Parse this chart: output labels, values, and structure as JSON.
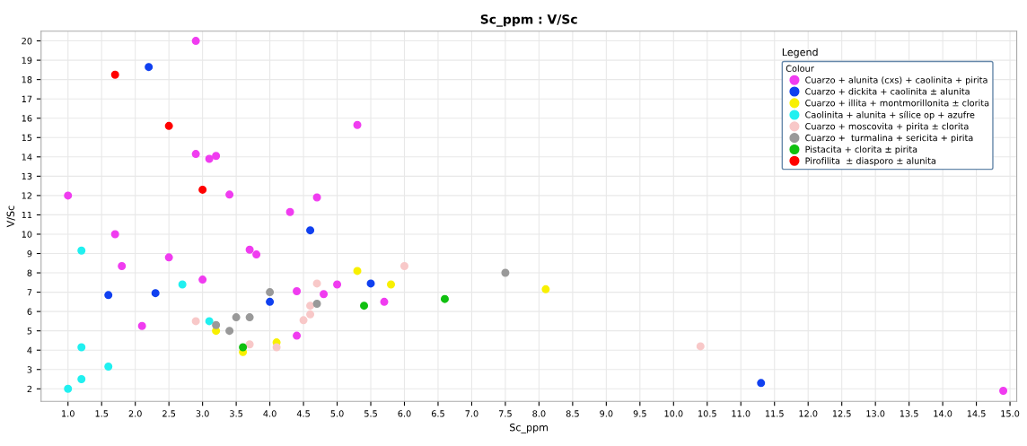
{
  "chart_data": {
    "type": "scatter",
    "title": "Sc_ppm : V/Sc",
    "xlabel": "Sc_ppm",
    "ylabel": "V/Sc",
    "legend_title": "Colour",
    "annotations": [
      "Legend"
    ],
    "xlim": [
      0.6,
      15.1
    ],
    "ylim": [
      1.35,
      20.5
    ],
    "xticks": [
      {
        "value": 1.0,
        "label": "1.0"
      },
      {
        "value": 1.5,
        "label": "1.5"
      },
      {
        "value": 2.0,
        "label": "2.0"
      },
      {
        "value": 2.5,
        "label": "2.5"
      },
      {
        "value": 3.0,
        "label": "3.0"
      },
      {
        "value": 3.5,
        "label": "3.5"
      },
      {
        "value": 4.0,
        "label": "4.0"
      },
      {
        "value": 4.5,
        "label": "4.5"
      },
      {
        "value": 5.0,
        "label": "5.0"
      },
      {
        "value": 5.5,
        "label": "5.5"
      },
      {
        "value": 6.0,
        "label": "6.0"
      },
      {
        "value": 6.5,
        "label": "6.5"
      },
      {
        "value": 7.0,
        "label": "7.0"
      },
      {
        "value": 7.5,
        "label": "7.5"
      },
      {
        "value": 8.0,
        "label": "8.0"
      },
      {
        "value": 8.5,
        "label": "8.5"
      },
      {
        "value": 9.0,
        "label": "9.0"
      },
      {
        "value": 9.5,
        "label": "9.5"
      },
      {
        "value": 10.0,
        "label": "10.0"
      },
      {
        "value": 10.5,
        "label": "10.5"
      },
      {
        "value": 11.0,
        "label": "11.0"
      },
      {
        "value": 11.5,
        "label": "11.5"
      },
      {
        "value": 12.0,
        "label": "12.0"
      },
      {
        "value": 12.5,
        "label": "12.5"
      },
      {
        "value": 13.0,
        "label": "13.0"
      },
      {
        "value": 13.5,
        "label": "13.5"
      },
      {
        "value": 14.0,
        "label": "14.0"
      },
      {
        "value": 14.5,
        "label": "14.5"
      },
      {
        "value": 15.0,
        "label": "15.0"
      }
    ],
    "yticks": [
      2,
      3,
      4,
      5,
      6,
      7,
      8,
      9,
      10,
      11,
      12,
      13,
      14,
      15,
      16,
      17,
      18,
      19,
      20
    ],
    "grid": true,
    "legend": "top right",
    "marker": "circle",
    "series": [
      {
        "name": "Cuarzo + alunita (cxs) + caolinita + pirita",
        "color": "#f03cf0",
        "x": [
          2.9,
          5.3,
          2.9,
          3.1,
          3.2,
          1.0,
          3.4,
          4.3,
          4.7,
          1.7,
          1.8,
          2.5,
          3.7,
          3.8,
          3.0,
          2.1,
          4.4,
          4.8,
          5.0,
          4.4,
          5.7,
          14.9
        ],
        "values": [
          20.0,
          15.65,
          14.15,
          13.9,
          14.05,
          12.0,
          12.05,
          11.15,
          11.9,
          10.0,
          8.35,
          8.8,
          9.2,
          8.95,
          7.65,
          5.25,
          7.05,
          6.9,
          7.4,
          4.75,
          6.5,
          1.9
        ]
      },
      {
        "name": "Cuarzo + dickita + caolinita ± alunita",
        "color": "#1040f0",
        "x": [
          2.2,
          4.6,
          1.6,
          2.3,
          4.0,
          5.5,
          11.3
        ],
        "values": [
          18.65,
          10.2,
          6.85,
          6.95,
          6.5,
          7.45,
          2.3
        ]
      },
      {
        "name": "Cuarzo + illita + montmorillonita ± clorita",
        "color": "#f8f000",
        "x": [
          3.2,
          3.6,
          4.1,
          5.3,
          5.8,
          8.1
        ],
        "values": [
          5.0,
          3.9,
          4.4,
          8.1,
          7.4,
          7.15
        ]
      },
      {
        "name": "Caolinita + alunita + sílice op + azufre",
        "color": "#20f0f0",
        "x": [
          1.2,
          2.7,
          3.1,
          1.2,
          1.6,
          1.2,
          1.0
        ],
        "values": [
          9.15,
          7.4,
          5.5,
          4.15,
          3.15,
          2.5,
          2.0
        ]
      },
      {
        "name": "Cuarzo + moscovita + pirita ± clorita",
        "color": "#f8c8c8",
        "x": [
          2.9,
          3.7,
          4.1,
          4.5,
          4.6,
          4.6,
          4.7,
          6.0,
          10.4
        ],
        "values": [
          5.5,
          4.3,
          4.15,
          5.55,
          5.85,
          6.3,
          7.45,
          8.35,
          4.2
        ]
      },
      {
        "name": "Cuarzo +  turmalina + sericita + pirita",
        "color": "#999999",
        "x": [
          3.2,
          3.4,
          3.5,
          3.7,
          4.0,
          4.7,
          7.5
        ],
        "values": [
          5.3,
          5.0,
          5.7,
          5.7,
          7.0,
          6.4,
          8.0
        ]
      },
      {
        "name": "Pistacita + clorita ± pirita",
        "color": "#10c010",
        "x": [
          3.6,
          5.4,
          6.6
        ],
        "values": [
          4.15,
          6.3,
          6.65
        ]
      },
      {
        "name": "Pirofilita  ± diasporo ± alunita",
        "color": "#ff0000",
        "x": [
          1.7,
          2.5,
          3.0
        ],
        "values": [
          18.25,
          15.6,
          12.3
        ]
      }
    ]
  }
}
